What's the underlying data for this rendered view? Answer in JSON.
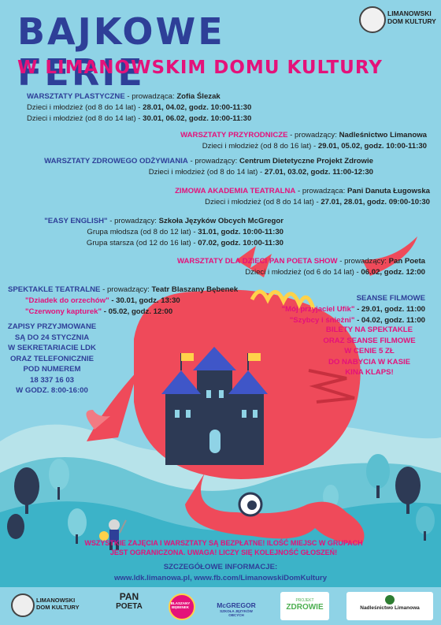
{
  "logo_top": {
    "line1": "LIMANOWSKI",
    "line2": "DOM KULTURY"
  },
  "title": {
    "line1": "BAJKOWE FERIE",
    "line2": "W LIMANOWSKIM DOMU KULTURY"
  },
  "blocks": [
    {
      "head": "WARSZTATY PLASTYCZNE",
      "sep": " - prowadząca: ",
      "leader": "Zofia Ślezak",
      "rows": [
        {
          "group": "Dzieci i młodzież (od 8 do 14 lat) - ",
          "dates": "28.01, 04.02, godz. 10:00-11:30"
        },
        {
          "group": "Dzieci i młodzież (od 8 do 14 lat) - ",
          "dates": "30.01, 06.02, godz. 10:00-11:30"
        }
      ]
    },
    {
      "head": "WARSZTATY PRZYRODNICZE",
      "sep": " - prowadzący: ",
      "leader": "Nadleśnictwo Limanowa",
      "rows": [
        {
          "group": "Dzieci i młodzież (od 8 do 16 lat) - ",
          "dates": "29.01, 05.02, godz. 10:00-11:30"
        }
      ]
    },
    {
      "head": "WARSZTATY ZDROWEGO ODŻYWIANIA",
      "sep": " - prowadzący: ",
      "leader": "Centrum Dietetyczne Projekt Zdrowie",
      "rows": [
        {
          "group": "Dzieci i młodzież (od 8 do 14 lat) - ",
          "dates": "27.01, 03.02, godz. 11:00-12:30"
        }
      ]
    },
    {
      "head": "ZIMOWA AKADEMIA TEATRALNA",
      "sep": " - prowadząca: ",
      "leader": "Pani Danuta Ługowska",
      "rows": [
        {
          "group": "Dzieci i młodzież (od 8 do 14 lat) - ",
          "dates": "27.01, 28.01, godz. 09:00-10:30"
        }
      ]
    },
    {
      "head": "\"EASY ENGLISH\"",
      "sep": " - prowadzący: ",
      "leader": "Szkoła Języków Obcych McGregor",
      "rows": [
        {
          "group": "Grupa młodsza (od 8 do 12 lat) - ",
          "dates": "31.01, godz. 10:00-11:30"
        },
        {
          "group": "Grupa starsza (od 12 do 16 lat) - ",
          "dates": "07.02, godz. 10:00-11:30"
        }
      ]
    },
    {
      "head": "WARSZTATY DLA DZIECI PAN POETA SHOW",
      "sep": " - prowadzący: ",
      "leader": "Pan Poeta",
      "rows": [
        {
          "group": "Dzieci i młodzież (od 6 do 14 lat) - ",
          "dates": "06.02, godz. 12:00"
        }
      ]
    }
  ],
  "spektakle": {
    "head": "SPEKTAKLE TEATRALNE",
    "sep": " - prowadzący: ",
    "leader": "Teatr Blaszany Bębenek",
    "rows": [
      {
        "name": "\"Dziadek do orzechów\"",
        "date": " - 30.01, godz. 13:30"
      },
      {
        "name": "\"Czerwony kapturek\"",
        "date": " - 05.02, godz. 12:00"
      }
    ]
  },
  "seanse": {
    "head": "SEANSE FILMOWE",
    "rows": [
      {
        "name": "\"Mój przyjaciel Ufik\"",
        "date": " - 29.01, godz. 11:00"
      },
      {
        "name": "\"Szybcy i śnieżni\"",
        "date": " - 04.02, godz. 11:00"
      }
    ]
  },
  "zapisy": [
    "ZAPISY PRZYJMOWANE",
    "SĄ DO 24 STYCZNIA",
    "W SEKRETARIACIE LDK",
    "ORAZ TELEFONICZNIE",
    "POD NUMEREM",
    "18 337 16 03",
    "W GODZ. 8:00-16:00"
  ],
  "bilety": [
    "BILETY NA SPEKTAKLE",
    "ORAZ SEANSE FILMOWE",
    "W CENIE 5 ZŁ",
    "DO NABYCIA W KASIE",
    "KINA KLAPS!"
  ],
  "free_note": {
    "line1": "WSZYSTKIE ZAJĘCIA I WARSZTATY SĄ BEZPŁATNE! ILOŚĆ MIEJSC W GRUPACH",
    "line2": "JEST OGRANICZONA. UWAGA! LICZY SIĘ KOLEJNOŚĆ GŁOSZEŃ!"
  },
  "more": {
    "header": "SZCZEGÓŁOWE INFORMACJE:",
    "link1": "www.ldk.limanowa.pl",
    "separator": ", ",
    "link2": "www.fb.com/LimanowskiDomKultury"
  },
  "footer_logos": {
    "ldk": {
      "line1": "LIMANOWSKI",
      "line2": "DOM KULTURY"
    },
    "panpoeta": {
      "line1": "PAN",
      "line2": "POETA"
    },
    "teatr": {
      "text": "BLASZANY BĘBENEK"
    },
    "mcgregor": {
      "line1": "McGREGOR",
      "line2": "SZKOŁA JĘZYKÓW OBCYCH"
    },
    "zdrowie": {
      "line1": "PROJEKT",
      "line2": "ZDROWIE"
    },
    "nadlesnictwo": {
      "text": "Nadleśnictwo Limanowa"
    }
  },
  "colors": {
    "background": "#8fd3e6",
    "title_blue": "#2e3f98",
    "pink": "#e4127a",
    "dragon": "#ef4a5a",
    "castle": "#2d3a55"
  }
}
